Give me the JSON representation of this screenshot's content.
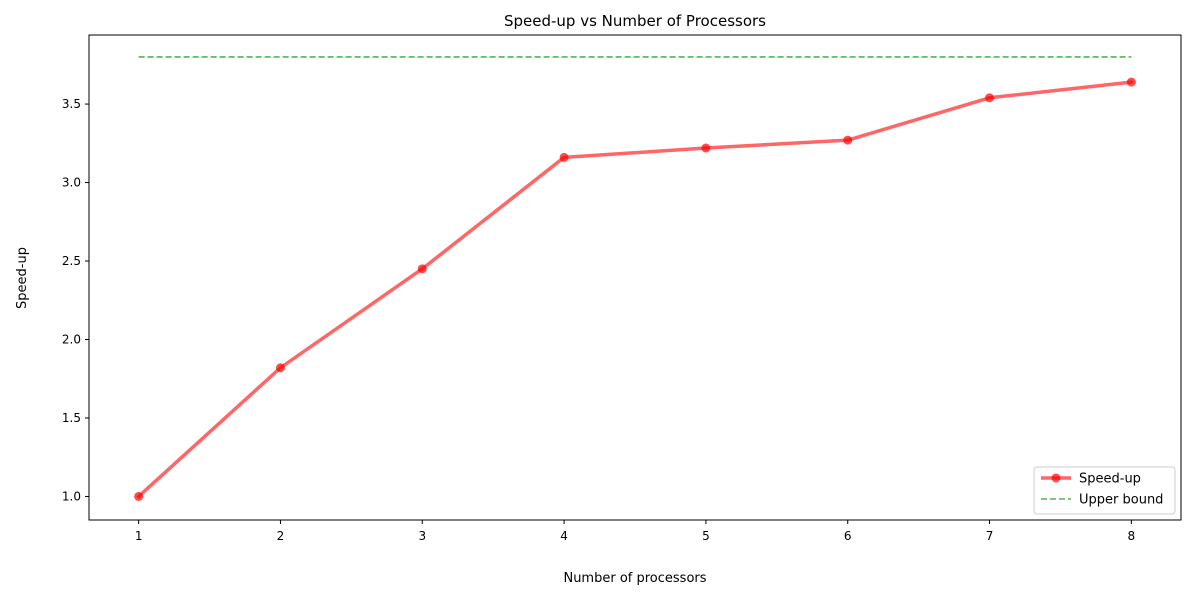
{
  "chart_data": {
    "type": "line",
    "title": "Speed-up vs Number of Processors",
    "xlabel": "Number of processors",
    "ylabel": "Speed-up",
    "x": [
      1,
      2,
      3,
      4,
      5,
      6,
      7,
      8
    ],
    "xticks": [
      "1",
      "2",
      "3",
      "4",
      "5",
      "6",
      "7",
      "8"
    ],
    "yticks": [
      "1.0",
      "1.5",
      "2.0",
      "2.5",
      "3.0",
      "3.5"
    ],
    "xlim": [
      0.65,
      8.35
    ],
    "ylim": [
      0.85,
      3.94
    ],
    "grid": false,
    "legend_position": "lower-right",
    "series": [
      {
        "name": "Speed-up",
        "style": "solid-with-markers",
        "color": "#ff0000",
        "values": [
          1.0,
          1.82,
          2.45,
          3.16,
          3.22,
          3.27,
          3.54,
          3.64
        ]
      },
      {
        "name": "Upper bound",
        "style": "dashed",
        "color": "#2ca02c",
        "x": [
          1,
          8
        ],
        "values": [
          3.8,
          3.8
        ]
      }
    ]
  }
}
